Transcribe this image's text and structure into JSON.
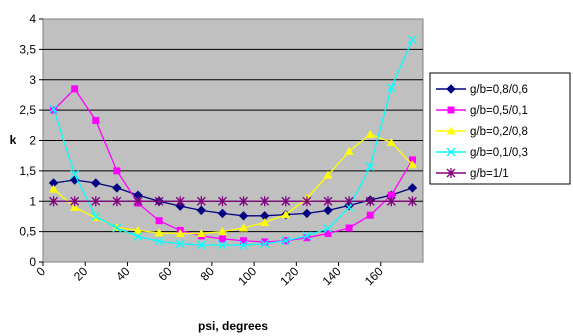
{
  "chart_data": {
    "type": "line",
    "title": "",
    "xlabel": "psi, degrees",
    "ylabel": "k",
    "x": [
      5,
      15,
      25,
      35,
      45,
      55,
      65,
      75,
      85,
      95,
      105,
      115,
      125,
      135,
      145,
      155,
      165,
      175
    ],
    "xlim": [
      0,
      180
    ],
    "ylim": [
      0,
      4
    ],
    "x_ticks": [
      "0",
      "20",
      "40",
      "60",
      "80",
      "100",
      "120",
      "140",
      "160"
    ],
    "y_ticks": [
      "0",
      "0,5",
      "1",
      "1,5",
      "2",
      "2,5",
      "3",
      "3,5",
      "4"
    ],
    "grid": "horizontal",
    "plot_background": "#c0c0c0",
    "legend_position": "right",
    "series": [
      {
        "name": "g/b=0,8/0,6",
        "color": "#000080",
        "marker": "diamond",
        "values": [
          1.3,
          1.35,
          1.3,
          1.22,
          1.1,
          1.0,
          0.92,
          0.85,
          0.8,
          0.76,
          0.76,
          0.78,
          0.8,
          0.85,
          0.93,
          1.02,
          1.1,
          1.22
        ]
      },
      {
        "name": "g/b=0,5/0,1",
        "color": "#ff00ff",
        "marker": "square",
        "values": [
          2.5,
          2.85,
          2.33,
          1.5,
          0.97,
          0.68,
          0.52,
          0.43,
          0.38,
          0.35,
          0.33,
          0.35,
          0.4,
          0.47,
          0.56,
          0.77,
          1.1,
          1.68
        ]
      },
      {
        "name": "g/b=0,2/0,8",
        "color": "#ffff00",
        "marker": "triangle",
        "values": [
          1.2,
          0.9,
          0.73,
          0.57,
          0.52,
          0.48,
          0.47,
          0.47,
          0.5,
          0.56,
          0.65,
          0.78,
          1.05,
          1.43,
          1.82,
          2.1,
          1.97,
          1.6
        ]
      },
      {
        "name": "g/b=0,1/0,3",
        "color": "#00ffff",
        "marker": "x",
        "values": [
          2.52,
          1.44,
          0.75,
          0.56,
          0.42,
          0.34,
          0.3,
          0.28,
          0.28,
          0.28,
          0.3,
          0.35,
          0.43,
          0.55,
          0.9,
          1.57,
          2.87,
          3.66
        ]
      },
      {
        "name": "g/b=1/1",
        "color": "#800080",
        "marker": "star",
        "values": [
          1.0,
          1.0,
          1.0,
          1.0,
          1.0,
          1.0,
          1.0,
          1.0,
          1.0,
          1.0,
          1.0,
          1.0,
          1.0,
          1.0,
          1.0,
          1.0,
          1.0,
          1.0
        ]
      }
    ]
  }
}
